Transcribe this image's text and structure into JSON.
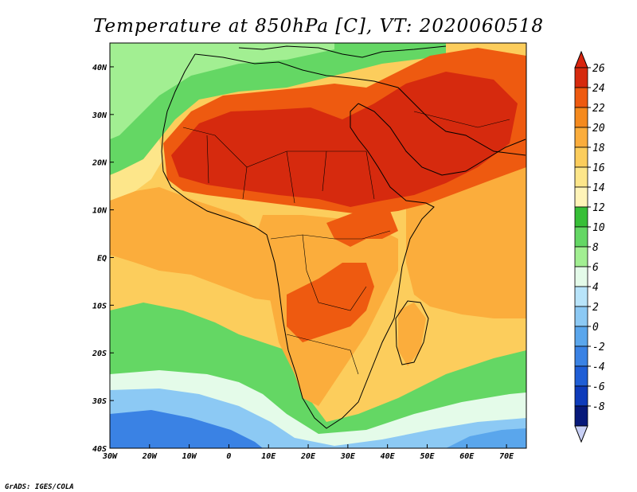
{
  "title": "Temperature at 850hPa [C], VT: 2020060518",
  "credit": "GrADS: IGES/COLA",
  "map": {
    "lon_range": [
      -30,
      75
    ],
    "lat_range": [
      -40,
      45
    ],
    "lon_ticks": [
      {
        "value": -30,
        "label": "30W"
      },
      {
        "value": -20,
        "label": "20W"
      },
      {
        "value": -10,
        "label": "10W"
      },
      {
        "value": 0,
        "label": "0"
      },
      {
        "value": 10,
        "label": "10E"
      },
      {
        "value": 20,
        "label": "20E"
      },
      {
        "value": 30,
        "label": "30E"
      },
      {
        "value": 40,
        "label": "40E"
      },
      {
        "value": 50,
        "label": "50E"
      },
      {
        "value": 60,
        "label": "60E"
      },
      {
        "value": 70,
        "label": "70E"
      }
    ],
    "lat_ticks": [
      {
        "value": 40,
        "label": "40N"
      },
      {
        "value": 30,
        "label": "30N"
      },
      {
        "value": 20,
        "label": "20N"
      },
      {
        "value": 10,
        "label": "10N"
      },
      {
        "value": 0,
        "label": "EQ"
      },
      {
        "value": -10,
        "label": "10S"
      },
      {
        "value": -20,
        "label": "20S"
      },
      {
        "value": -30,
        "label": "30S"
      },
      {
        "value": -40,
        "label": "40S"
      }
    ]
  },
  "colorbar": {
    "labels": [
      "26",
      "24",
      "22",
      "20",
      "18",
      "16",
      "14",
      "12",
      "10",
      "8",
      "6",
      "4",
      "2",
      "0",
      "-2",
      "-4",
      "-6",
      "-8"
    ],
    "colors": [
      "#d62a0e",
      "#ee5a10",
      "#f58a1e",
      "#fbad3c",
      "#fccd5c",
      "#fde68a",
      "#fff4b8",
      "#37bf37",
      "#64d764",
      "#a2ef92",
      "#e4fbe9",
      "#b8e4fa",
      "#8cc9f4",
      "#5aa6ec",
      "#3a82e4",
      "#1f5ed6",
      "#0e3bba",
      "#07197a"
    ],
    "over_color": "#d8240e",
    "under_color": "#c8d0f6"
  }
}
